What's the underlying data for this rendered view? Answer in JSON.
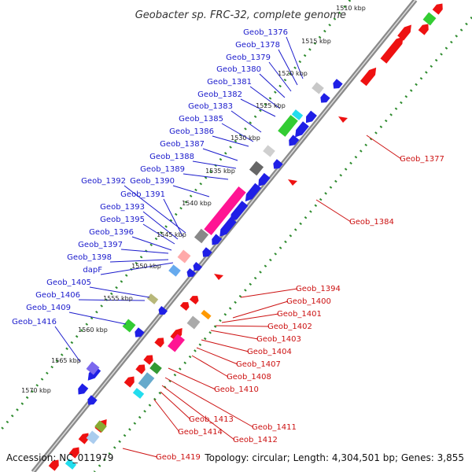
{
  "title": "Geobacter sp. FRC-32, complete genome",
  "footer": {
    "accession": "Accession: NC_011979",
    "summary": "Topology: circular; Length: 4,304,501 bp; Genes: 3,855"
  },
  "colors": {
    "forward": "#1f1fe6",
    "reverse": "#ee1111",
    "label_forward": "#1a1acc",
    "label_reverse": "#cc1111",
    "backbone": "#888888",
    "ticks": "#2e8b2e"
  },
  "ticks": [
    "1510 kbp",
    "1515 kbp",
    "1520 kbp",
    "1525 kbp",
    "1530 kbp",
    "1535 kbp",
    "1540 kbp",
    "1545 kbp",
    "1550 kbp",
    "1555 kbp",
    "1560 kbp",
    "1565 kbp",
    "1570 kbp"
  ],
  "forward_labels": [
    "Geob_1376",
    "Geob_1378",
    "Geob_1379",
    "Geob_1380",
    "Geob_1381",
    "Geob_1382",
    "Geob_1383",
    "Geob_1385",
    "Geob_1386",
    "Geob_1387",
    "Geob_1388",
    "Geob_1389",
    "Geob_1390",
    "Geob_1392",
    "Geob_1391",
    "Geob_1393",
    "Geob_1395",
    "Geob_1396",
    "Geob_1397",
    "Geob_1398",
    "dapF",
    "Geob_1405",
    "Geob_1406",
    "Geob_1409",
    "Geob_1416"
  ],
  "reverse_labels": [
    "Geob_1377",
    "Geob_1384",
    "Geob_1394",
    "Geob_1400",
    "Geob_1401",
    "Geob_1402",
    "Geob_1403",
    "Geob_1404",
    "Geob_1407",
    "Geob_1408",
    "Geob_1410",
    "Geob_1413",
    "Geob_1411",
    "Geob_1414",
    "Geob_1412",
    "Geob_1419"
  ]
}
